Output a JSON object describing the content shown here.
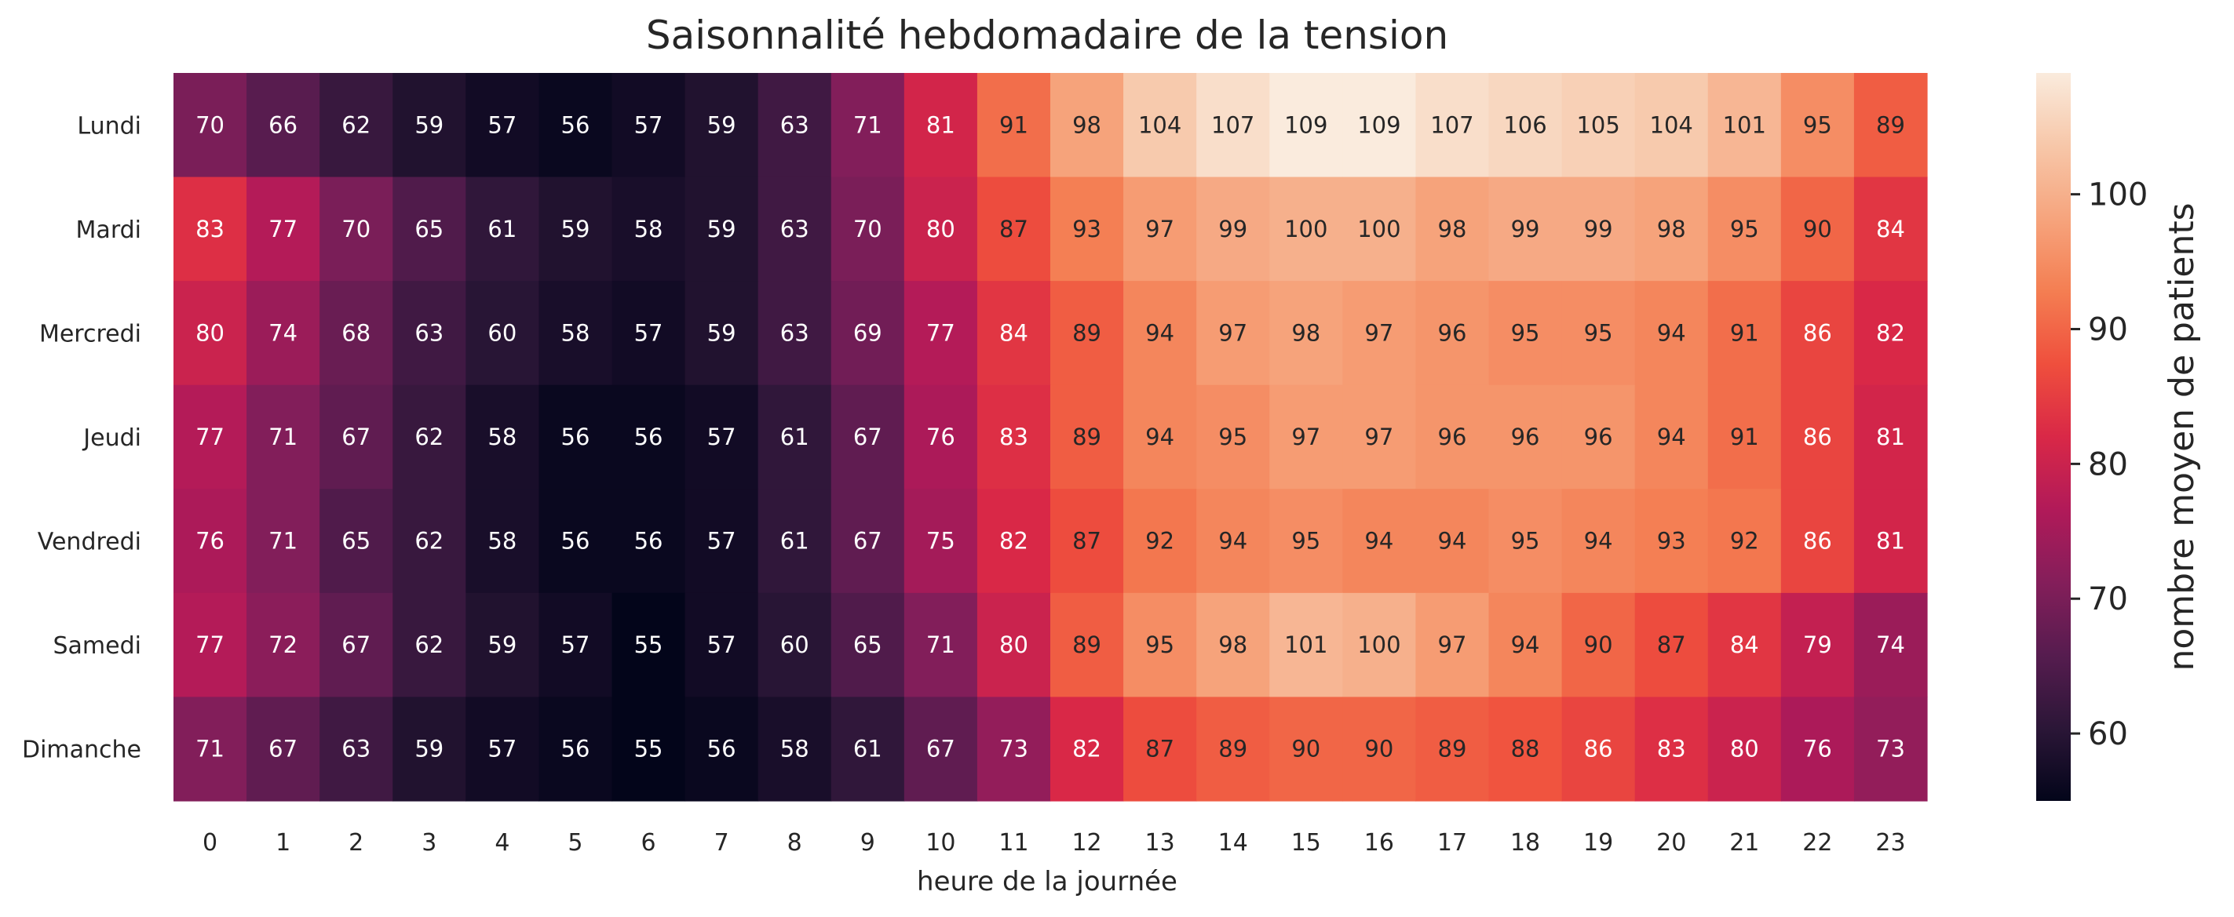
{
  "chart_data": {
    "type": "heatmap",
    "title": "Saisonnalité hebdomadaire de la tension",
    "xlabel": "heure de la journée",
    "ylabel": "",
    "x_categories": [
      "0",
      "1",
      "2",
      "3",
      "4",
      "5",
      "6",
      "7",
      "8",
      "9",
      "10",
      "11",
      "12",
      "13",
      "14",
      "15",
      "16",
      "17",
      "18",
      "19",
      "20",
      "21",
      "22",
      "23"
    ],
    "y_categories": [
      "Lundi",
      "Mardi",
      "Mercredi",
      "Jeudi",
      "Vendredi",
      "Samedi",
      "Dimanche"
    ],
    "values": [
      [
        70,
        66,
        62,
        59,
        57,
        56,
        57,
        59,
        63,
        71,
        81,
        91,
        98,
        104,
        107,
        109,
        109,
        107,
        106,
        105,
        104,
        101,
        95,
        89
      ],
      [
        83,
        77,
        70,
        65,
        61,
        59,
        58,
        59,
        63,
        70,
        80,
        87,
        93,
        97,
        99,
        100,
        100,
        98,
        99,
        99,
        98,
        95,
        90,
        84
      ],
      [
        80,
        74,
        68,
        63,
        60,
        58,
        57,
        59,
        63,
        69,
        77,
        84,
        89,
        94,
        97,
        98,
        97,
        96,
        95,
        95,
        94,
        91,
        86,
        82
      ],
      [
        77,
        71,
        67,
        62,
        58,
        56,
        56,
        57,
        61,
        67,
        76,
        83,
        89,
        94,
        95,
        97,
        97,
        96,
        96,
        96,
        94,
        91,
        86,
        81
      ],
      [
        76,
        71,
        65,
        62,
        58,
        56,
        56,
        57,
        61,
        67,
        75,
        82,
        87,
        92,
        94,
        95,
        94,
        94,
        95,
        94,
        93,
        92,
        86,
        81
      ],
      [
        77,
        72,
        67,
        62,
        59,
        57,
        55,
        57,
        60,
        65,
        71,
        80,
        89,
        95,
        98,
        101,
        100,
        97,
        94,
        90,
        87,
        84,
        79,
        74
      ],
      [
        71,
        67,
        63,
        59,
        57,
        56,
        55,
        56,
        58,
        61,
        67,
        73,
        82,
        87,
        89,
        90,
        90,
        89,
        88,
        86,
        83,
        80,
        76,
        73
      ]
    ],
    "colorscale": "rocket",
    "colorscale_stops": [
      "#03051a",
      "#2b1637",
      "#561c4f",
      "#841e5a",
      "#b11a59",
      "#d92847",
      "#ef4f3d",
      "#f47e52",
      "#f6a47d",
      "#f7c7a9",
      "#faebdd"
    ],
    "vmin": 55,
    "vmax": 109,
    "colorbar": {
      "label": "nombre moyen de patients",
      "ticks": [
        "60",
        "70",
        "80",
        "90",
        "100"
      ],
      "tick_values": [
        60,
        70,
        80,
        90,
        100
      ],
      "position": "right"
    },
    "annotations": true,
    "grid": false
  }
}
